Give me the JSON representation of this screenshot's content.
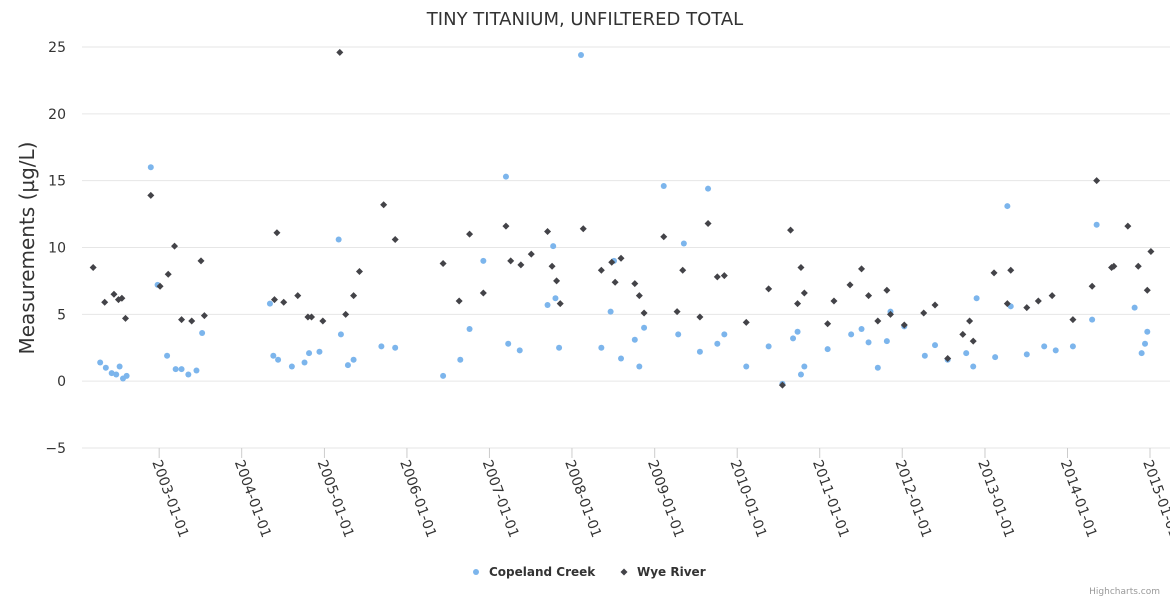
{
  "chart_data": {
    "type": "scatter",
    "title": "TINY TITANIUM, UNFILTERED TOTAL",
    "ylabel": "Measurements (µg/L)",
    "xlabel": "",
    "ylim": [
      -5,
      25
    ],
    "xlim": [
      "2002-03-01",
      "2015-01-01"
    ],
    "y_ticks": [
      -5,
      0,
      5,
      10,
      15,
      20,
      25
    ],
    "x_ticks": [
      "2003-01-01",
      "2004-01-01",
      "2005-01-01",
      "2006-01-01",
      "2007-01-01",
      "2008-01-01",
      "2009-01-01",
      "2010-01-01",
      "2011-01-01",
      "2012-01-01",
      "2013-01-01",
      "2014-01-01",
      "2015-01-01"
    ],
    "grid": true,
    "legend_position": "bottom-center",
    "credits": "Highcharts.com",
    "series": [
      {
        "name": "Copeland Creek",
        "color": "#7cb5ec",
        "marker": "circle",
        "points": [
          [
            "2002-04-15",
            1.4
          ],
          [
            "2002-05-10",
            1.0
          ],
          [
            "2002-06-05",
            0.6
          ],
          [
            "2002-06-25",
            0.5
          ],
          [
            "2002-07-10",
            1.1
          ],
          [
            "2002-07-25",
            0.2
          ],
          [
            "2002-08-10",
            0.4
          ],
          [
            "2002-11-25",
            16.0
          ],
          [
            "2002-12-25",
            7.2
          ],
          [
            "2003-02-05",
            1.9
          ],
          [
            "2003-03-15",
            0.9
          ],
          [
            "2003-04-10",
            0.9
          ],
          [
            "2003-05-10",
            0.5
          ],
          [
            "2003-06-15",
            0.8
          ],
          [
            "2003-07-10",
            3.6
          ],
          [
            "2004-05-05",
            5.8
          ],
          [
            "2004-05-20",
            1.9
          ],
          [
            "2004-06-10",
            1.6
          ],
          [
            "2004-08-10",
            1.1
          ],
          [
            "2004-10-05",
            1.4
          ],
          [
            "2004-10-25",
            2.1
          ],
          [
            "2004-12-10",
            2.2
          ],
          [
            "2005-03-05",
            10.6
          ],
          [
            "2005-03-15",
            3.5
          ],
          [
            "2005-04-15",
            1.2
          ],
          [
            "2005-05-10",
            1.6
          ],
          [
            "2005-09-10",
            2.6
          ],
          [
            "2005-11-10",
            2.5
          ],
          [
            "2006-06-10",
            0.4
          ],
          [
            "2006-08-25",
            1.6
          ],
          [
            "2006-10-05",
            3.9
          ],
          [
            "2006-12-05",
            9.0
          ],
          [
            "2007-03-15",
            15.3
          ],
          [
            "2007-03-25",
            2.8
          ],
          [
            "2007-05-15",
            2.3
          ],
          [
            "2007-09-15",
            5.7
          ],
          [
            "2007-10-10",
            10.1
          ],
          [
            "2007-10-20",
            6.2
          ],
          [
            "2007-11-05",
            2.5
          ],
          [
            "2008-02-10",
            24.4
          ],
          [
            "2008-05-10",
            2.5
          ],
          [
            "2008-06-20",
            5.2
          ],
          [
            "2008-07-05",
            9.0
          ],
          [
            "2008-08-05",
            1.7
          ],
          [
            "2008-10-05",
            3.1
          ],
          [
            "2008-10-25",
            1.1
          ],
          [
            "2008-11-15",
            4.0
          ],
          [
            "2009-02-10",
            14.6
          ],
          [
            "2009-04-15",
            3.5
          ],
          [
            "2009-05-10",
            10.3
          ],
          [
            "2009-07-20",
            2.2
          ],
          [
            "2009-08-25",
            14.4
          ],
          [
            "2009-10-05",
            2.8
          ],
          [
            "2009-11-05",
            3.5
          ],
          [
            "2010-02-10",
            1.1
          ],
          [
            "2010-05-20",
            2.6
          ],
          [
            "2010-07-20",
            -0.2
          ],
          [
            "2010-09-05",
            3.2
          ],
          [
            "2010-09-25",
            3.7
          ],
          [
            "2010-10-10",
            0.5
          ],
          [
            "2010-10-25",
            1.1
          ],
          [
            "2011-02-05",
            2.4
          ],
          [
            "2011-05-20",
            3.5
          ],
          [
            "2011-07-05",
            3.9
          ],
          [
            "2011-08-05",
            2.9
          ],
          [
            "2011-09-15",
            1.0
          ],
          [
            "2011-10-25",
            3.0
          ],
          [
            "2011-11-10",
            5.2
          ],
          [
            "2012-01-10",
            4.1
          ],
          [
            "2012-04-10",
            1.9
          ],
          [
            "2012-05-25",
            2.7
          ],
          [
            "2012-07-20",
            1.6
          ],
          [
            "2012-10-10",
            2.1
          ],
          [
            "2012-11-10",
            1.1
          ],
          [
            "2012-11-25",
            6.2
          ],
          [
            "2013-02-15",
            1.8
          ],
          [
            "2013-04-10",
            13.1
          ],
          [
            "2013-04-25",
            5.6
          ],
          [
            "2013-07-05",
            2.0
          ],
          [
            "2013-09-20",
            2.6
          ],
          [
            "2013-11-10",
            2.3
          ],
          [
            "2014-01-25",
            2.6
          ],
          [
            "2014-04-20",
            4.6
          ],
          [
            "2014-05-10",
            11.7
          ],
          [
            "2014-10-25",
            5.5
          ],
          [
            "2014-11-25",
            2.1
          ],
          [
            "2014-12-10",
            2.8
          ],
          [
            "2014-12-20",
            3.7
          ]
        ]
      },
      {
        "name": "Wye River",
        "color": "#434348",
        "marker": "diamond",
        "points": [
          [
            "2002-03-15",
            8.5
          ],
          [
            "2002-05-05",
            5.9
          ],
          [
            "2002-06-15",
            6.5
          ],
          [
            "2002-07-05",
            6.1
          ],
          [
            "2002-07-20",
            6.2
          ],
          [
            "2002-08-05",
            4.7
          ],
          [
            "2002-11-25",
            13.9
          ],
          [
            "2003-01-05",
            7.1
          ],
          [
            "2003-02-10",
            8.0
          ],
          [
            "2003-03-10",
            10.1
          ],
          [
            "2003-04-10",
            4.6
          ],
          [
            "2003-05-25",
            4.5
          ],
          [
            "2003-07-05",
            9.0
          ],
          [
            "2003-07-20",
            4.9
          ],
          [
            "2004-05-25",
            6.1
          ],
          [
            "2004-06-05",
            11.1
          ],
          [
            "2004-07-05",
            5.9
          ],
          [
            "2004-09-05",
            6.4
          ],
          [
            "2004-10-20",
            4.8
          ],
          [
            "2004-11-05",
            4.8
          ],
          [
            "2004-12-25",
            4.5
          ],
          [
            "2005-03-10",
            24.6
          ],
          [
            "2005-04-05",
            5.0
          ],
          [
            "2005-05-10",
            6.4
          ],
          [
            "2005-06-05",
            8.2
          ],
          [
            "2005-09-20",
            13.2
          ],
          [
            "2005-11-10",
            10.6
          ],
          [
            "2006-06-10",
            8.8
          ],
          [
            "2006-08-20",
            6.0
          ],
          [
            "2006-10-05",
            11.0
          ],
          [
            "2006-12-05",
            6.6
          ],
          [
            "2007-03-15",
            11.6
          ],
          [
            "2007-04-05",
            9.0
          ],
          [
            "2007-05-20",
            8.7
          ],
          [
            "2007-07-05",
            9.5
          ],
          [
            "2007-09-15",
            11.2
          ],
          [
            "2007-10-05",
            8.6
          ],
          [
            "2007-10-25",
            7.5
          ],
          [
            "2007-11-10",
            5.8
          ],
          [
            "2008-02-20",
            11.4
          ],
          [
            "2008-05-10",
            8.3
          ],
          [
            "2008-06-25",
            8.9
          ],
          [
            "2008-07-10",
            7.4
          ],
          [
            "2008-08-05",
            9.2
          ],
          [
            "2008-10-05",
            7.3
          ],
          [
            "2008-10-25",
            6.4
          ],
          [
            "2008-11-15",
            5.1
          ],
          [
            "2009-02-10",
            10.8
          ],
          [
            "2009-04-10",
            5.2
          ],
          [
            "2009-05-05",
            8.3
          ],
          [
            "2009-07-20",
            4.8
          ],
          [
            "2009-08-25",
            11.8
          ],
          [
            "2009-10-05",
            7.8
          ],
          [
            "2009-11-05",
            7.9
          ],
          [
            "2010-02-10",
            4.4
          ],
          [
            "2010-05-20",
            6.9
          ],
          [
            "2010-07-20",
            -0.3
          ],
          [
            "2010-08-25",
            11.3
          ],
          [
            "2010-09-25",
            5.8
          ],
          [
            "2010-10-10",
            8.5
          ],
          [
            "2010-10-25",
            6.6
          ],
          [
            "2011-02-05",
            4.3
          ],
          [
            "2011-03-05",
            6.0
          ],
          [
            "2011-05-15",
            7.2
          ],
          [
            "2011-07-05",
            8.4
          ],
          [
            "2011-08-05",
            6.4
          ],
          [
            "2011-09-15",
            4.5
          ],
          [
            "2011-10-25",
            6.8
          ],
          [
            "2011-11-10",
            5.0
          ],
          [
            "2012-01-10",
            4.2
          ],
          [
            "2012-04-05",
            5.1
          ],
          [
            "2012-05-25",
            5.7
          ],
          [
            "2012-07-20",
            1.7
          ],
          [
            "2012-09-25",
            3.5
          ],
          [
            "2012-10-25",
            4.5
          ],
          [
            "2012-11-10",
            3.0
          ],
          [
            "2013-02-10",
            8.1
          ],
          [
            "2013-04-10",
            5.8
          ],
          [
            "2013-04-25",
            8.3
          ],
          [
            "2013-07-05",
            5.5
          ],
          [
            "2013-08-25",
            6.0
          ],
          [
            "2013-10-25",
            6.4
          ],
          [
            "2014-01-25",
            4.6
          ],
          [
            "2014-04-20",
            7.1
          ],
          [
            "2014-05-10",
            15.0
          ],
          [
            "2014-07-15",
            8.5
          ],
          [
            "2014-07-25",
            8.6
          ],
          [
            "2014-09-25",
            11.6
          ],
          [
            "2014-11-10",
            8.6
          ],
          [
            "2014-12-20",
            6.8
          ],
          [
            "2015-01-05",
            9.7
          ]
        ]
      }
    ]
  }
}
